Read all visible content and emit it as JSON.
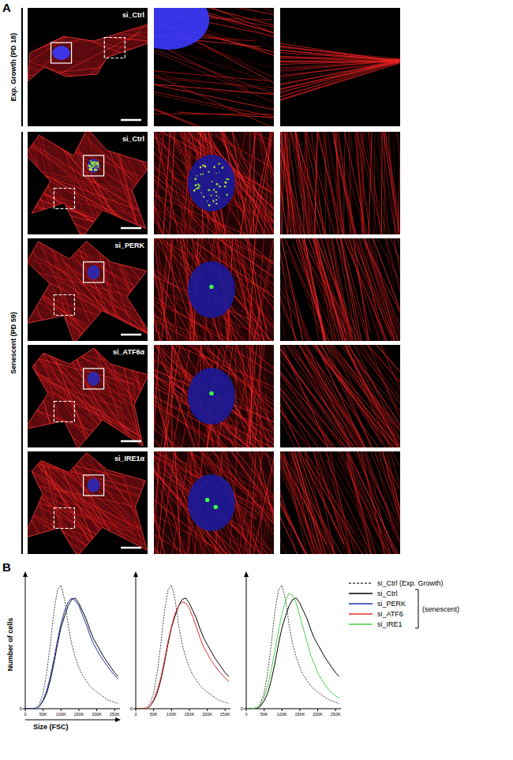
{
  "panel_a": {
    "label": "A",
    "groups": [
      {
        "label": "Exp. Growth (PD 18)",
        "panels": [
          {
            "label": "si_Ctrl"
          }
        ]
      },
      {
        "label": "Senescent (PD 59)",
        "panels": [
          {
            "label": "si_Ctrl"
          },
          {
            "label": "si_PERK"
          },
          {
            "label": "si_ATF6α"
          },
          {
            "label": "si_IRE1α"
          }
        ]
      }
    ]
  },
  "panel_b": {
    "label": "B",
    "legend_note": "(senescent)"
  },
  "chart_data": [
    {
      "type": "line",
      "xlabel": "Size (FSC)",
      "ylabel": "Number of cells",
      "legend": "right",
      "x": [
        0,
        10000,
        20000,
        30000,
        40000,
        50000,
        60000,
        70000,
        80000,
        90000,
        100000,
        110000,
        120000,
        130000,
        140000,
        150000,
        160000,
        170000,
        180000,
        190000,
        200000,
        210000,
        220000,
        230000,
        240000,
        250000,
        260000
      ],
      "xlim": [
        0,
        265000
      ],
      "xticks": [
        0,
        {
          "value": 50000,
          "label": "50K"
        },
        {
          "value": 100000,
          "label": "100K"
        },
        {
          "value": 150000,
          "label": "150K"
        },
        {
          "value": 200000,
          "label": "200K"
        },
        {
          "value": 250000,
          "label": "250K"
        }
      ],
      "ylim": [
        0,
        100
      ],
      "yticks": [
        0
      ],
      "series": [
        {
          "name": "si_Ctrl (Exp. Growth)",
          "color": "#444444",
          "line_style": "dashed",
          "values": [
            0,
            0,
            0,
            1,
            4,
            12,
            28,
            50,
            75,
            92,
            96,
            85,
            65,
            50,
            40,
            32,
            26,
            22,
            18,
            15,
            13,
            11,
            9,
            7,
            6,
            5,
            4
          ]
        },
        {
          "name": "si_Ctrl",
          "color": "#000000",
          "line_style": "solid",
          "values": [
            0,
            0,
            0,
            0,
            2,
            6,
            12,
            22,
            35,
            50,
            63,
            72,
            80,
            85,
            86,
            82,
            76,
            70,
            62,
            55,
            50,
            45,
            40,
            36,
            32,
            28,
            25
          ]
        },
        {
          "name": "si_PERK",
          "color": "#2233aa",
          "line_style": "solid",
          "values": [
            0,
            0,
            0,
            0,
            2,
            7,
            14,
            25,
            38,
            53,
            66,
            76,
            83,
            86,
            84,
            80,
            73,
            66,
            58,
            51,
            46,
            41,
            37,
            33,
            29,
            26,
            23
          ]
        }
      ]
    },
    {
      "type": "line",
      "x": [
        0,
        10000,
        20000,
        30000,
        40000,
        50000,
        60000,
        70000,
        80000,
        90000,
        100000,
        110000,
        120000,
        130000,
        140000,
        150000,
        160000,
        170000,
        180000,
        190000,
        200000,
        210000,
        220000,
        230000,
        240000,
        250000,
        260000
      ],
      "xlim": [
        0,
        265000
      ],
      "xticks": [
        0,
        {
          "value": 50000,
          "label": "50K"
        },
        {
          "value": 100000,
          "label": "100K"
        },
        {
          "value": 150000,
          "label": "150K"
        },
        {
          "value": 200000,
          "label": "200K"
        },
        {
          "value": 250000,
          "label": "250K"
        }
      ],
      "ylim": [
        0,
        100
      ],
      "yticks": [
        0
      ],
      "series": [
        {
          "name": "si_Ctrl (Exp. Growth)",
          "color": "#444444",
          "line_style": "dashed",
          "values": [
            0,
            0,
            0,
            1,
            4,
            12,
            28,
            50,
            75,
            92,
            96,
            85,
            65,
            50,
            40,
            32,
            26,
            22,
            18,
            15,
            13,
            11,
            9,
            7,
            6,
            5,
            4
          ]
        },
        {
          "name": "si_Ctrl",
          "color": "#000000",
          "line_style": "solid",
          "values": [
            0,
            0,
            0,
            0,
            2,
            6,
            12,
            22,
            35,
            50,
            63,
            72,
            80,
            85,
            86,
            82,
            76,
            70,
            62,
            55,
            50,
            45,
            40,
            36,
            32,
            28,
            25
          ]
        },
        {
          "name": "si_ATF6",
          "color": "#e0302a",
          "line_style": "solid",
          "values": [
            0,
            0,
            0,
            0,
            2,
            7,
            14,
            24,
            37,
            52,
            64,
            74,
            80,
            83,
            82,
            78,
            71,
            63,
            55,
            48,
            43,
            38,
            34,
            30,
            27,
            24,
            21
          ]
        }
      ]
    },
    {
      "type": "line",
      "x": [
        0,
        10000,
        20000,
        30000,
        40000,
        50000,
        60000,
        70000,
        80000,
        90000,
        100000,
        110000,
        120000,
        130000,
        140000,
        150000,
        160000,
        170000,
        180000,
        190000,
        200000,
        210000,
        220000,
        230000,
        240000,
        250000,
        260000
      ],
      "xlim": [
        0,
        265000
      ],
      "xticks": [
        0,
        {
          "value": 50000,
          "label": "50K"
        },
        {
          "value": 100000,
          "label": "100K"
        },
        {
          "value": 150000,
          "label": "150K"
        },
        {
          "value": 200000,
          "label": "200K"
        },
        {
          "value": 250000,
          "label": "250K"
        }
      ],
      "ylim": [
        0,
        100
      ],
      "yticks": [
        0
      ],
      "series": [
        {
          "name": "si_Ctrl (Exp. Growth)",
          "color": "#444444",
          "line_style": "dashed",
          "values": [
            0,
            0,
            0,
            1,
            4,
            12,
            28,
            50,
            75,
            92,
            96,
            85,
            65,
            50,
            40,
            32,
            26,
            22,
            18,
            15,
            13,
            11,
            9,
            7,
            6,
            5,
            4
          ]
        },
        {
          "name": "si_Ctrl",
          "color": "#000000",
          "line_style": "solid",
          "values": [
            0,
            0,
            0,
            0,
            2,
            6,
            12,
            22,
            35,
            50,
            63,
            72,
            80,
            85,
            86,
            82,
            76,
            70,
            62,
            55,
            50,
            45,
            40,
            36,
            32,
            28,
            25
          ]
        },
        {
          "name": "si_IRE1",
          "color": "#4cd44c",
          "line_style": "solid",
          "values": [
            0,
            0,
            0,
            1,
            3,
            9,
            18,
            30,
            45,
            60,
            74,
            84,
            90,
            88,
            82,
            72,
            62,
            52,
            42,
            35,
            28,
            23,
            19,
            15,
            12,
            10,
            8
          ]
        }
      ]
    }
  ]
}
